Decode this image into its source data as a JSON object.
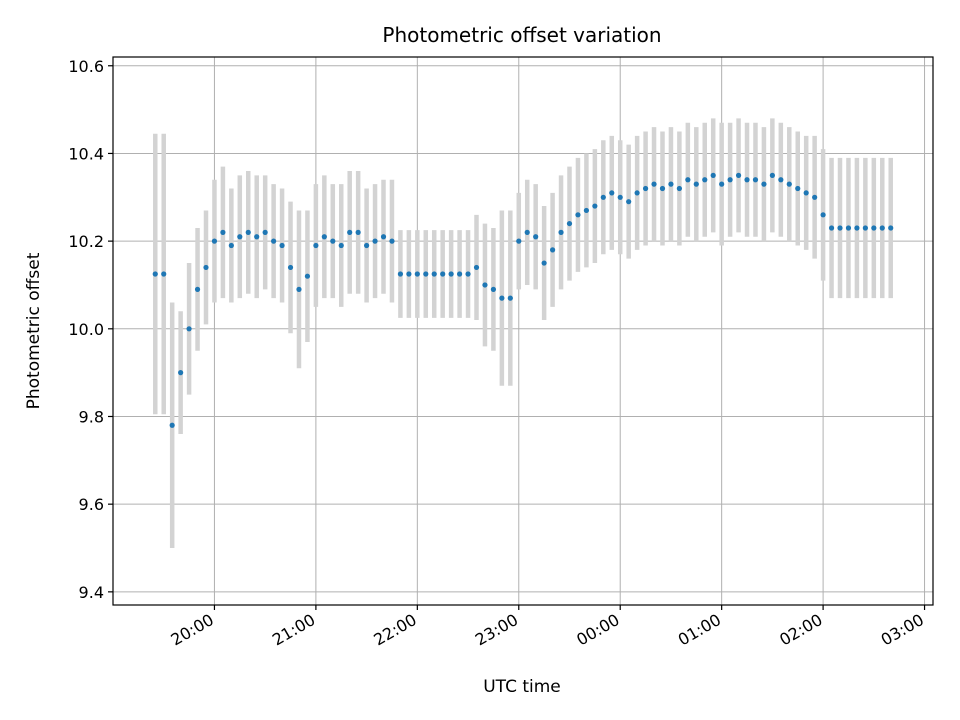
{
  "chart_data": {
    "type": "scatter",
    "title": "Photometric offset variation",
    "xlabel": "UTC time",
    "ylabel": "Photometric offset",
    "x_axis_type": "time",
    "xlim": [
      "19:00",
      "27:05"
    ],
    "ylim": [
      9.37,
      10.62
    ],
    "x_ticks": [
      "20:00",
      "21:00",
      "22:00",
      "23:00",
      "00:00",
      "01:00",
      "02:00",
      "03:00"
    ],
    "y_ticks": [
      9.4,
      9.6,
      9.8,
      10.0,
      10.2,
      10.4,
      10.6
    ],
    "grid": true,
    "marker_color": "#1f77b4",
    "errorbar_color": "#d3d3d3",
    "series": [
      {
        "x": [
          "19:25",
          "19:30",
          "19:35",
          "19:40",
          "19:45",
          "19:50",
          "19:55",
          "20:00",
          "20:05",
          "20:10",
          "20:15",
          "20:20",
          "20:25",
          "20:30",
          "20:35",
          "20:40",
          "20:45",
          "20:50",
          "20:55",
          "21:00",
          "21:05",
          "21:10",
          "21:15",
          "21:20",
          "21:25",
          "21:30",
          "21:35",
          "21:40",
          "21:45",
          "21:50",
          "21:55",
          "22:00",
          "22:05",
          "22:10",
          "22:15",
          "22:20",
          "22:25",
          "22:30",
          "22:35",
          "22:40",
          "22:45",
          "22:50",
          "22:55",
          "23:00",
          "23:05",
          "23:10",
          "23:15",
          "23:20",
          "23:25",
          "23:30",
          "23:35",
          "23:40",
          "23:45",
          "23:50",
          "23:55",
          "24:00",
          "24:05",
          "24:10",
          "24:15",
          "24:20",
          "24:25",
          "24:30",
          "24:35",
          "24:40",
          "24:45",
          "24:50",
          "24:55",
          "25:00",
          "25:05",
          "25:10",
          "25:15",
          "25:20",
          "25:25",
          "25:30",
          "25:35",
          "25:40",
          "25:45",
          "25:50",
          "25:55",
          "26:00",
          "26:05",
          "26:10",
          "26:15",
          "26:20",
          "26:25",
          "26:30",
          "26:35",
          "26:40"
        ],
        "y": [
          10.125,
          10.125,
          9.78,
          9.9,
          10.0,
          10.09,
          10.14,
          10.2,
          10.22,
          10.19,
          10.21,
          10.22,
          10.21,
          10.22,
          10.2,
          10.19,
          10.14,
          10.09,
          10.12,
          10.19,
          10.21,
          10.2,
          10.19,
          10.22,
          10.22,
          10.19,
          10.2,
          10.21,
          10.2,
          10.125,
          10.125,
          10.125,
          10.125,
          10.125,
          10.125,
          10.125,
          10.125,
          10.125,
          10.14,
          10.1,
          10.09,
          10.07,
          10.07,
          10.2,
          10.22,
          10.21,
          10.15,
          10.18,
          10.22,
          10.24,
          10.26,
          10.27,
          10.28,
          10.3,
          10.31,
          10.3,
          10.29,
          10.31,
          10.32,
          10.33,
          10.32,
          10.33,
          10.32,
          10.34,
          10.33,
          10.34,
          10.35,
          10.33,
          10.34,
          10.35,
          10.34,
          10.34,
          10.33,
          10.35,
          10.34,
          10.33,
          10.32,
          10.31,
          10.3,
          10.26,
          10.23,
          10.23,
          10.23,
          10.23,
          10.23,
          10.23,
          10.23,
          10.23
        ],
        "yerr": [
          0.32,
          0.32,
          0.28,
          0.14,
          0.15,
          0.14,
          0.13,
          0.14,
          0.15,
          0.13,
          0.14,
          0.14,
          0.14,
          0.13,
          0.13,
          0.13,
          0.15,
          0.18,
          0.15,
          0.14,
          0.14,
          0.13,
          0.14,
          0.14,
          0.14,
          0.13,
          0.13,
          0.13,
          0.14,
          0.1,
          0.1,
          0.1,
          0.1,
          0.1,
          0.1,
          0.1,
          0.1,
          0.1,
          0.12,
          0.14,
          0.14,
          0.2,
          0.2,
          0.11,
          0.12,
          0.12,
          0.13,
          0.13,
          0.13,
          0.13,
          0.13,
          0.13,
          0.13,
          0.13,
          0.13,
          0.13,
          0.13,
          0.13,
          0.13,
          0.13,
          0.13,
          0.13,
          0.13,
          0.13,
          0.13,
          0.13,
          0.13,
          0.14,
          0.13,
          0.13,
          0.13,
          0.13,
          0.13,
          0.13,
          0.13,
          0.13,
          0.13,
          0.13,
          0.14,
          0.15,
          0.16,
          0.16,
          0.16,
          0.16,
          0.16,
          0.16,
          0.16,
          0.16
        ]
      }
    ]
  }
}
